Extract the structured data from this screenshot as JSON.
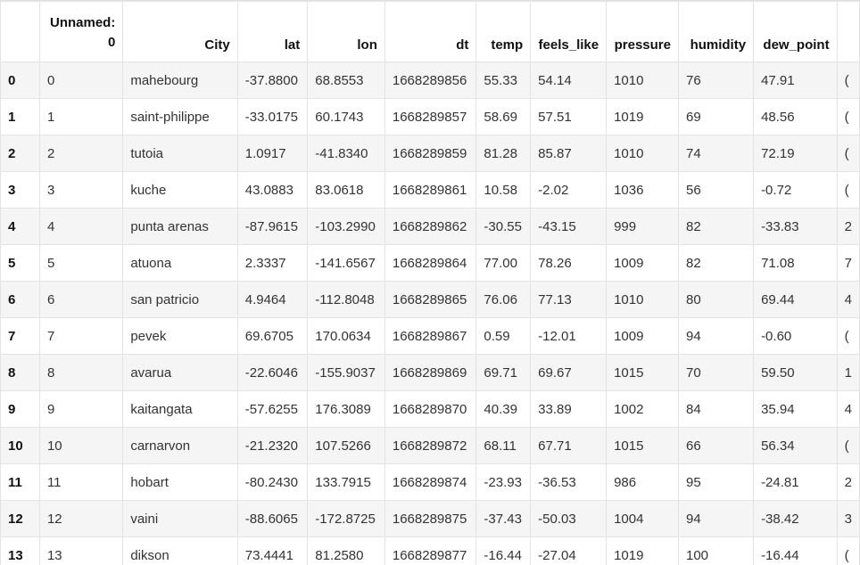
{
  "table": {
    "columns": [
      "",
      "Unnamed:\n0",
      "City",
      "lat",
      "lon",
      "dt",
      "temp",
      "feels_like",
      "pressure",
      "humidity",
      "dew_point",
      ""
    ],
    "header_unnamed_line1": "Unnamed:",
    "header_unnamed_line2": "0",
    "rows": [
      {
        "index": "0",
        "unnamed": "0",
        "city": "mahebourg",
        "lat": "-37.8800",
        "lon": "68.8553",
        "dt": "1668289856",
        "temp": "55.33",
        "feels_like": "54.14",
        "pressure": "1010",
        "humidity": "76",
        "dew_point": "47.91",
        "extra": "("
      },
      {
        "index": "1",
        "unnamed": "1",
        "city": "saint-philippe",
        "lat": "-33.0175",
        "lon": "60.1743",
        "dt": "1668289857",
        "temp": "58.69",
        "feels_like": "57.51",
        "pressure": "1019",
        "humidity": "69",
        "dew_point": "48.56",
        "extra": "("
      },
      {
        "index": "2",
        "unnamed": "2",
        "city": "tutoia",
        "lat": "1.0917",
        "lon": "-41.8340",
        "dt": "1668289859",
        "temp": "81.28",
        "feels_like": "85.87",
        "pressure": "1010",
        "humidity": "74",
        "dew_point": "72.19",
        "extra": "("
      },
      {
        "index": "3",
        "unnamed": "3",
        "city": "kuche",
        "lat": "43.0883",
        "lon": "83.0618",
        "dt": "1668289861",
        "temp": "10.58",
        "feels_like": "-2.02",
        "pressure": "1036",
        "humidity": "56",
        "dew_point": "-0.72",
        "extra": "("
      },
      {
        "index": "4",
        "unnamed": "4",
        "city": "punta arenas",
        "lat": "-87.9615",
        "lon": "-103.2990",
        "dt": "1668289862",
        "temp": "-30.55",
        "feels_like": "-43.15",
        "pressure": "999",
        "humidity": "82",
        "dew_point": "-33.83",
        "extra": "2"
      },
      {
        "index": "5",
        "unnamed": "5",
        "city": "atuona",
        "lat": "2.3337",
        "lon": "-141.6567",
        "dt": "1668289864",
        "temp": "77.00",
        "feels_like": "78.26",
        "pressure": "1009",
        "humidity": "82",
        "dew_point": "71.08",
        "extra": "7"
      },
      {
        "index": "6",
        "unnamed": "6",
        "city": "san patricio",
        "lat": "4.9464",
        "lon": "-112.8048",
        "dt": "1668289865",
        "temp": "76.06",
        "feels_like": "77.13",
        "pressure": "1010",
        "humidity": "80",
        "dew_point": "69.44",
        "extra": "4"
      },
      {
        "index": "7",
        "unnamed": "7",
        "city": "pevek",
        "lat": "69.6705",
        "lon": "170.0634",
        "dt": "1668289867",
        "temp": "0.59",
        "feels_like": "-12.01",
        "pressure": "1009",
        "humidity": "94",
        "dew_point": "-0.60",
        "extra": "("
      },
      {
        "index": "8",
        "unnamed": "8",
        "city": "avarua",
        "lat": "-22.6046",
        "lon": "-155.9037",
        "dt": "1668289869",
        "temp": "69.71",
        "feels_like": "69.67",
        "pressure": "1015",
        "humidity": "70",
        "dew_point": "59.50",
        "extra": "1"
      },
      {
        "index": "9",
        "unnamed": "9",
        "city": "kaitangata",
        "lat": "-57.6255",
        "lon": "176.3089",
        "dt": "1668289870",
        "temp": "40.39",
        "feels_like": "33.89",
        "pressure": "1002",
        "humidity": "84",
        "dew_point": "35.94",
        "extra": "4"
      },
      {
        "index": "10",
        "unnamed": "10",
        "city": "carnarvon",
        "lat": "-21.2320",
        "lon": "107.5266",
        "dt": "1668289872",
        "temp": "68.11",
        "feels_like": "67.71",
        "pressure": "1015",
        "humidity": "66",
        "dew_point": "56.34",
        "extra": "("
      },
      {
        "index": "11",
        "unnamed": "11",
        "city": "hobart",
        "lat": "-80.2430",
        "lon": "133.7915",
        "dt": "1668289874",
        "temp": "-23.93",
        "feels_like": "-36.53",
        "pressure": "986",
        "humidity": "95",
        "dew_point": "-24.81",
        "extra": "2"
      },
      {
        "index": "12",
        "unnamed": "12",
        "city": "vaini",
        "lat": "-88.6065",
        "lon": "-172.8725",
        "dt": "1668289875",
        "temp": "-37.43",
        "feels_like": "-50.03",
        "pressure": "1004",
        "humidity": "94",
        "dew_point": "-38.42",
        "extra": "3"
      },
      {
        "index": "13",
        "unnamed": "13",
        "city": "dikson",
        "lat": "73.4441",
        "lon": "81.2580",
        "dt": "1668289877",
        "temp": "-16.44",
        "feels_like": "-27.04",
        "pressure": "1019",
        "humidity": "100",
        "dew_point": "-16.44",
        "extra": "("
      }
    ]
  }
}
